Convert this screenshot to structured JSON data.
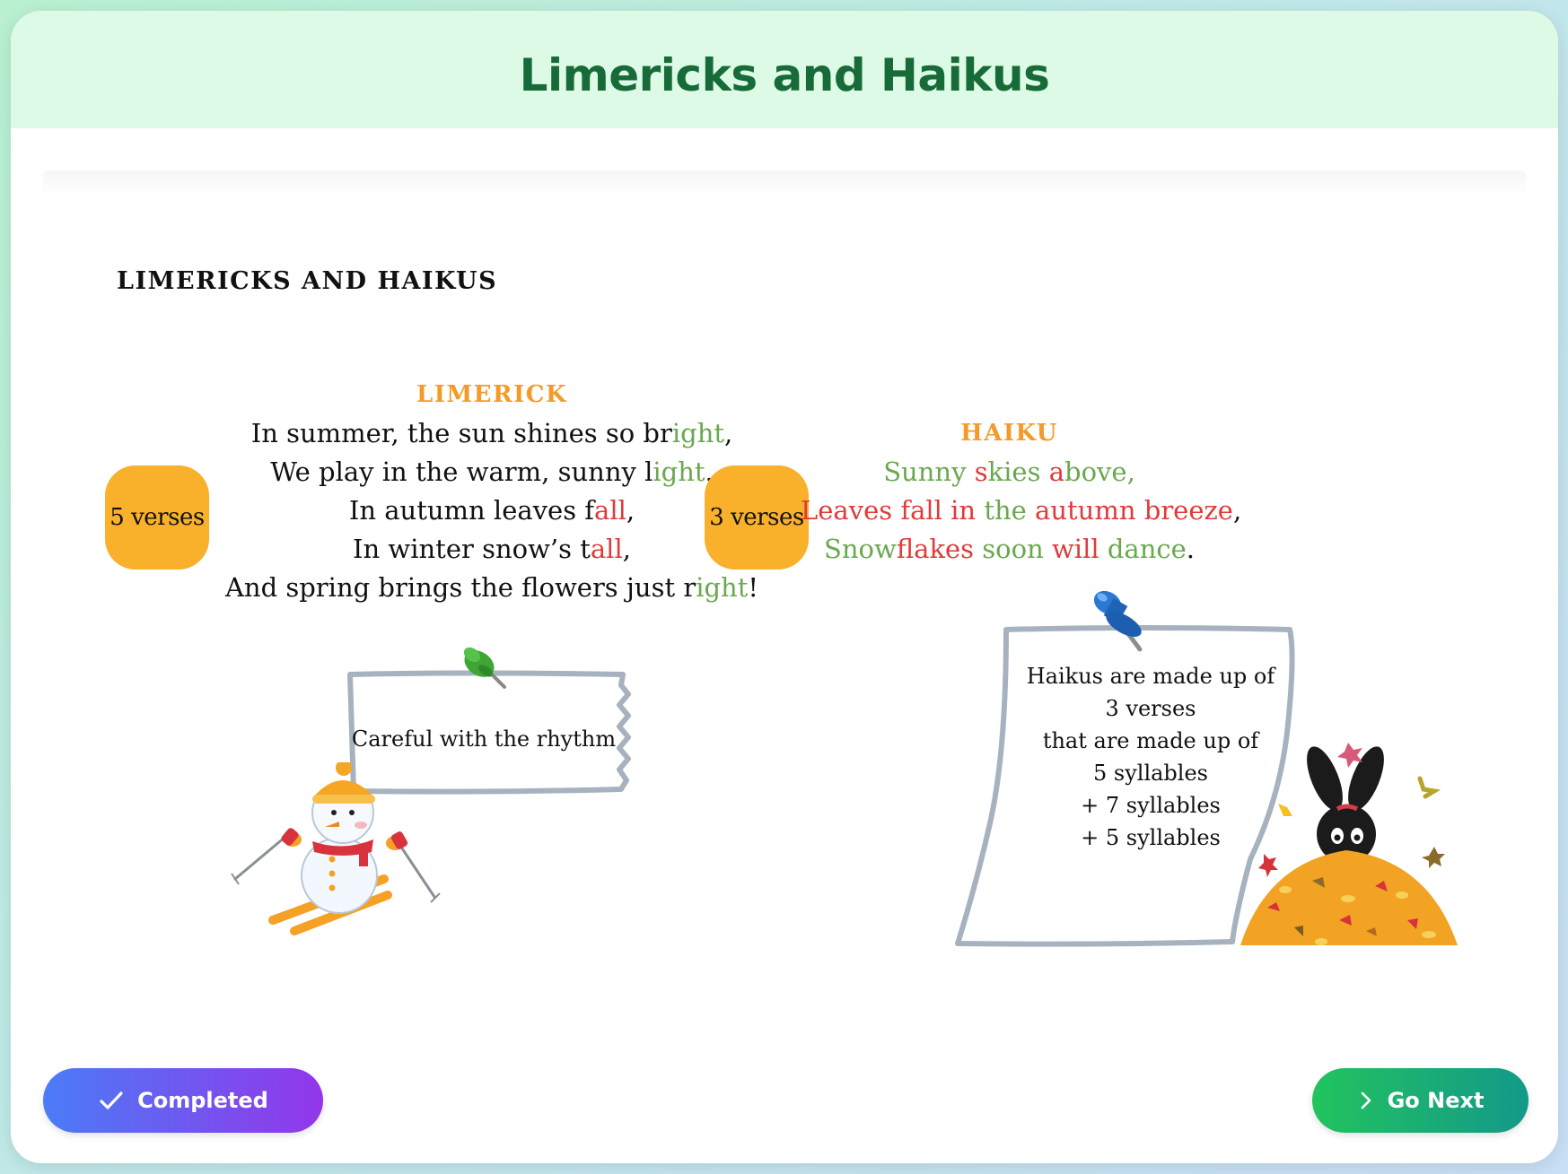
{
  "header": {
    "title": "Limericks and Haikus"
  },
  "section": {
    "title": "LIMERICKS AND HAIKUS"
  },
  "limerick": {
    "title": "LIMERICK",
    "badge": "5 verses",
    "lines": [
      [
        {
          "t": "In summer, the sun shines so br",
          "c": ""
        },
        {
          "t": "ight",
          "c": "g"
        },
        {
          "t": ",",
          "c": ""
        }
      ],
      [
        {
          "t": "We play in the warm, sunny l",
          "c": ""
        },
        {
          "t": "ight",
          "c": "g"
        },
        {
          "t": ".",
          "c": ""
        }
      ],
      [
        {
          "t": "In autumn leaves f",
          "c": ""
        },
        {
          "t": "all",
          "c": "r"
        },
        {
          "t": ",",
          "c": ""
        }
      ],
      [
        {
          "t": "In winter snow’s t",
          "c": ""
        },
        {
          "t": "all",
          "c": "r"
        },
        {
          "t": ",",
          "c": ""
        }
      ],
      [
        {
          "t": "And spring brings the flowers just r",
          "c": ""
        },
        {
          "t": "ight",
          "c": "g"
        },
        {
          "t": "!",
          "c": ""
        }
      ]
    ],
    "note": "Careful with the rhythm"
  },
  "haiku": {
    "title": "HAIKU",
    "badge": "3 verses",
    "lines": [
      [
        {
          "t": "Sunny ",
          "c": "g"
        },
        {
          "t": "s",
          "c": "r"
        },
        {
          "t": "kies ",
          "c": "g"
        },
        {
          "t": "a",
          "c": "r"
        },
        {
          "t": "bove,",
          "c": "g"
        }
      ],
      [
        {
          "t": "Leaves ",
          "c": "r"
        },
        {
          "t": "fall ",
          "c": "r"
        },
        {
          "t": "in ",
          "c": "r"
        },
        {
          "t": "the ",
          "c": "g"
        },
        {
          "t": "autumn ",
          "c": "r"
        },
        {
          "t": "breeze",
          "c": "r"
        },
        {
          "t": ",",
          "c": ""
        }
      ],
      [
        {
          "t": "Snow",
          "c": "g"
        },
        {
          "t": "flakes ",
          "c": "r"
        },
        {
          "t": "soon ",
          "c": "g"
        },
        {
          "t": "will ",
          "c": "r"
        },
        {
          "t": "dance",
          "c": "g"
        },
        {
          "t": ".",
          "c": ""
        }
      ]
    ],
    "note_lines": [
      "Haikus are made up of",
      "3 verses",
      "that are made up of",
      "5 syllables",
      "+ 7 syllables",
      "+ 5 syllables"
    ]
  },
  "buttons": {
    "completed": "Completed",
    "next": "Go Next"
  },
  "colors": {
    "accent_green": "#6aa84f",
    "accent_red": "#e03a3a",
    "badge": "#f9b02b",
    "title_orange": "#f59a28",
    "header_text": "#176b38"
  },
  "icons": [
    "check-icon",
    "chevron-right-icon",
    "green-pushpin-icon",
    "blue-pushpin-icon",
    "skiing-snowman-illustration",
    "rabbit-in-leaf-pile-illustration"
  ]
}
